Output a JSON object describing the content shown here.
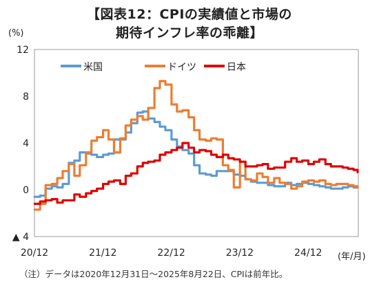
{
  "title_line1": "【図表12：CPIの実績値と市場の",
  "title_line2": "期待インフレ率の乖離】",
  "y_unit": "(%)",
  "x_unit": "(年/月)",
  "note": "（注）データは2020年12月31日～2025年8月22日、CPIは前年比。",
  "chart_data": {
    "type": "line",
    "title": "【図表12：CPIの実績値と市場の期待インフレ率の乖離】",
    "ylabel": "(%)",
    "xlabel": "(年/月)",
    "ylim": [
      -4,
      12
    ],
    "xlim": [
      2020.917,
      2025.65
    ],
    "y_ticks": [
      12,
      8,
      4,
      0,
      -4
    ],
    "y_tick_labels": [
      "12",
      "8",
      "4",
      "0",
      "▲ 4"
    ],
    "x_ticks": [
      2020.917,
      2021.917,
      2022.917,
      2023.917,
      2024.917
    ],
    "x_tick_labels": [
      "20/12",
      "21/12",
      "22/12",
      "23/12",
      "24/12"
    ],
    "legend_position": "top-left",
    "grid": false,
    "series": [
      {
        "name": "米国",
        "color": "#5B9BD5",
        "x": [
          2020.92,
          2021.0,
          2021.08,
          2021.17,
          2021.25,
          2021.33,
          2021.42,
          2021.5,
          2021.58,
          2021.67,
          2021.75,
          2021.83,
          2021.92,
          2022.0,
          2022.08,
          2022.17,
          2022.25,
          2022.33,
          2022.42,
          2022.5,
          2022.58,
          2022.67,
          2022.75,
          2022.83,
          2022.92,
          2023.0,
          2023.08,
          2023.17,
          2023.25,
          2023.33,
          2023.42,
          2023.5,
          2023.58,
          2023.67,
          2023.75,
          2023.83,
          2023.92,
          2024.0,
          2024.08,
          2024.17,
          2024.25,
          2024.33,
          2024.42,
          2024.5,
          2024.58,
          2024.67,
          2024.75,
          2024.83,
          2024.92,
          2025.0,
          2025.08,
          2025.17,
          2025.25,
          2025.33,
          2025.42,
          2025.5,
          2025.58,
          2025.64
        ],
        "values": [
          -0.6,
          -0.5,
          0.1,
          0.3,
          0.2,
          0.5,
          2.3,
          2.5,
          3.2,
          3.1,
          3.0,
          2.8,
          3.0,
          3.1,
          4.3,
          4.3,
          4.9,
          5.7,
          6.6,
          6.7,
          6.1,
          5.8,
          5.4,
          5.1,
          4.3,
          3.7,
          3.4,
          3.1,
          2.1,
          1.4,
          1.3,
          1.2,
          1.6,
          1.6,
          1.6,
          1.3,
          1.2,
          0.9,
          0.7,
          0.6,
          0.6,
          0.4,
          0.3,
          0.3,
          0.6,
          0.4,
          0.5,
          0.6,
          0.5,
          0.4,
          0.3,
          0.2,
          0.1,
          0.1,
          0.2,
          0.3,
          0.2,
          0.2
        ]
      },
      {
        "name": "ドイツ",
        "color": "#ED7D31",
        "x": [
          2020.92,
          2021.0,
          2021.08,
          2021.17,
          2021.25,
          2021.33,
          2021.42,
          2021.5,
          2021.58,
          2021.67,
          2021.75,
          2021.83,
          2021.92,
          2022.0,
          2022.08,
          2022.17,
          2022.25,
          2022.33,
          2022.42,
          2022.5,
          2022.58,
          2022.67,
          2022.75,
          2022.83,
          2022.92,
          2023.0,
          2023.08,
          2023.17,
          2023.25,
          2023.33,
          2023.42,
          2023.5,
          2023.58,
          2023.67,
          2023.75,
          2023.83,
          2023.92,
          2024.0,
          2024.08,
          2024.17,
          2024.25,
          2024.33,
          2024.42,
          2024.5,
          2024.58,
          2024.67,
          2024.75,
          2024.83,
          2024.92,
          2025.0,
          2025.08,
          2025.17,
          2025.25,
          2025.33,
          2025.42,
          2025.5,
          2025.58,
          2025.64
        ],
        "values": [
          -1.7,
          -1.2,
          0.4,
          0.5,
          1.0,
          1.6,
          2.2,
          1.2,
          2.1,
          3.2,
          4.2,
          4.5,
          5.1,
          4.3,
          3.2,
          4.4,
          5.5,
          6.0,
          6.3,
          6.0,
          7.0,
          8.7,
          9.3,
          9.0,
          7.3,
          6.7,
          6.8,
          6.2,
          5.1,
          4.3,
          4.2,
          4.4,
          4.3,
          2.1,
          1.7,
          0.2,
          2.4,
          0.9,
          0.8,
          1.4,
          1.1,
          0.6,
          1.0,
          0.6,
          0.5,
          0.1,
          0.3,
          0.7,
          0.8,
          0.7,
          0.8,
          0.5,
          0.4,
          0.5,
          0.5,
          0.4,
          0.3,
          0.2
        ]
      },
      {
        "name": "日本",
        "color": "#E00000",
        "x": [
          2020.92,
          2021.0,
          2021.08,
          2021.17,
          2021.25,
          2021.33,
          2021.42,
          2021.5,
          2021.58,
          2021.67,
          2021.75,
          2021.83,
          2021.92,
          2022.0,
          2022.08,
          2022.17,
          2022.25,
          2022.33,
          2022.42,
          2022.5,
          2022.58,
          2022.67,
          2022.75,
          2022.83,
          2022.92,
          2023.0,
          2023.08,
          2023.17,
          2023.25,
          2023.33,
          2023.42,
          2023.5,
          2023.58,
          2023.67,
          2023.75,
          2023.83,
          2023.92,
          2024.0,
          2024.08,
          2024.17,
          2024.25,
          2024.33,
          2024.42,
          2024.5,
          2024.58,
          2024.67,
          2024.75,
          2024.83,
          2024.92,
          2025.0,
          2025.08,
          2025.17,
          2025.25,
          2025.33,
          2025.42,
          2025.5,
          2025.58,
          2025.64
        ],
        "values": [
          -1.2,
          -1.0,
          -0.9,
          -0.8,
          -1.1,
          -0.9,
          -0.9,
          -0.4,
          -0.6,
          -0.3,
          -0.1,
          0.1,
          0.5,
          0.7,
          0.8,
          0.5,
          1.2,
          1.4,
          2.0,
          2.3,
          2.4,
          2.5,
          3.0,
          3.2,
          3.4,
          3.6,
          4.0,
          3.6,
          3.2,
          3.4,
          3.3,
          3.0,
          2.8,
          3.0,
          2.7,
          2.6,
          2.4,
          2.0,
          2.0,
          2.1,
          2.2,
          1.8,
          1.9,
          1.9,
          2.4,
          2.7,
          2.4,
          2.5,
          2.2,
          2.4,
          2.6,
          2.2,
          2.0,
          2.0,
          1.9,
          1.8,
          1.7,
          1.5
        ]
      }
    ]
  }
}
